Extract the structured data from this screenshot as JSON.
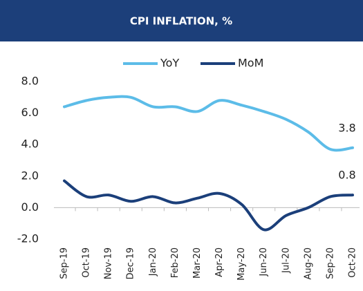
{
  "chart_data": {
    "type": "line",
    "title": "CPI INFLATION, %",
    "categories": [
      "Sep-19",
      "Oct-19",
      "Nov-19",
      "Dec-19",
      "Jan-20",
      "Feb-20",
      "Mar-20",
      "Apr-20",
      "May-20",
      "Jun-20",
      "Jul-20",
      "Aug-20",
      "Sep-20",
      "Oct-20"
    ],
    "series": [
      {
        "name": "YoY",
        "color": "#5cbce8",
        "values": [
          6.4,
          6.8,
          7.0,
          7.0,
          6.4,
          6.4,
          6.1,
          6.8,
          6.5,
          6.1,
          5.6,
          4.8,
          3.7,
          3.8
        ]
      },
      {
        "name": "MoM",
        "color": "#1b3f7a",
        "values": [
          1.7,
          0.7,
          0.8,
          0.4,
          0.7,
          0.3,
          0.6,
          0.9,
          0.2,
          -1.4,
          -0.5,
          0.0,
          0.7,
          0.8
        ]
      }
    ],
    "ylim": [
      -2,
      8
    ],
    "yticks": [
      {
        "value": -2,
        "label": "-2.0"
      },
      {
        "value": 0,
        "label": "0.0"
      },
      {
        "value": 2,
        "label": "2.0"
      },
      {
        "value": 4,
        "label": "4.0"
      },
      {
        "value": 6,
        "label": "6.0"
      },
      {
        "value": 8,
        "label": "8.0"
      }
    ],
    "grid": false,
    "legend": "top"
  }
}
